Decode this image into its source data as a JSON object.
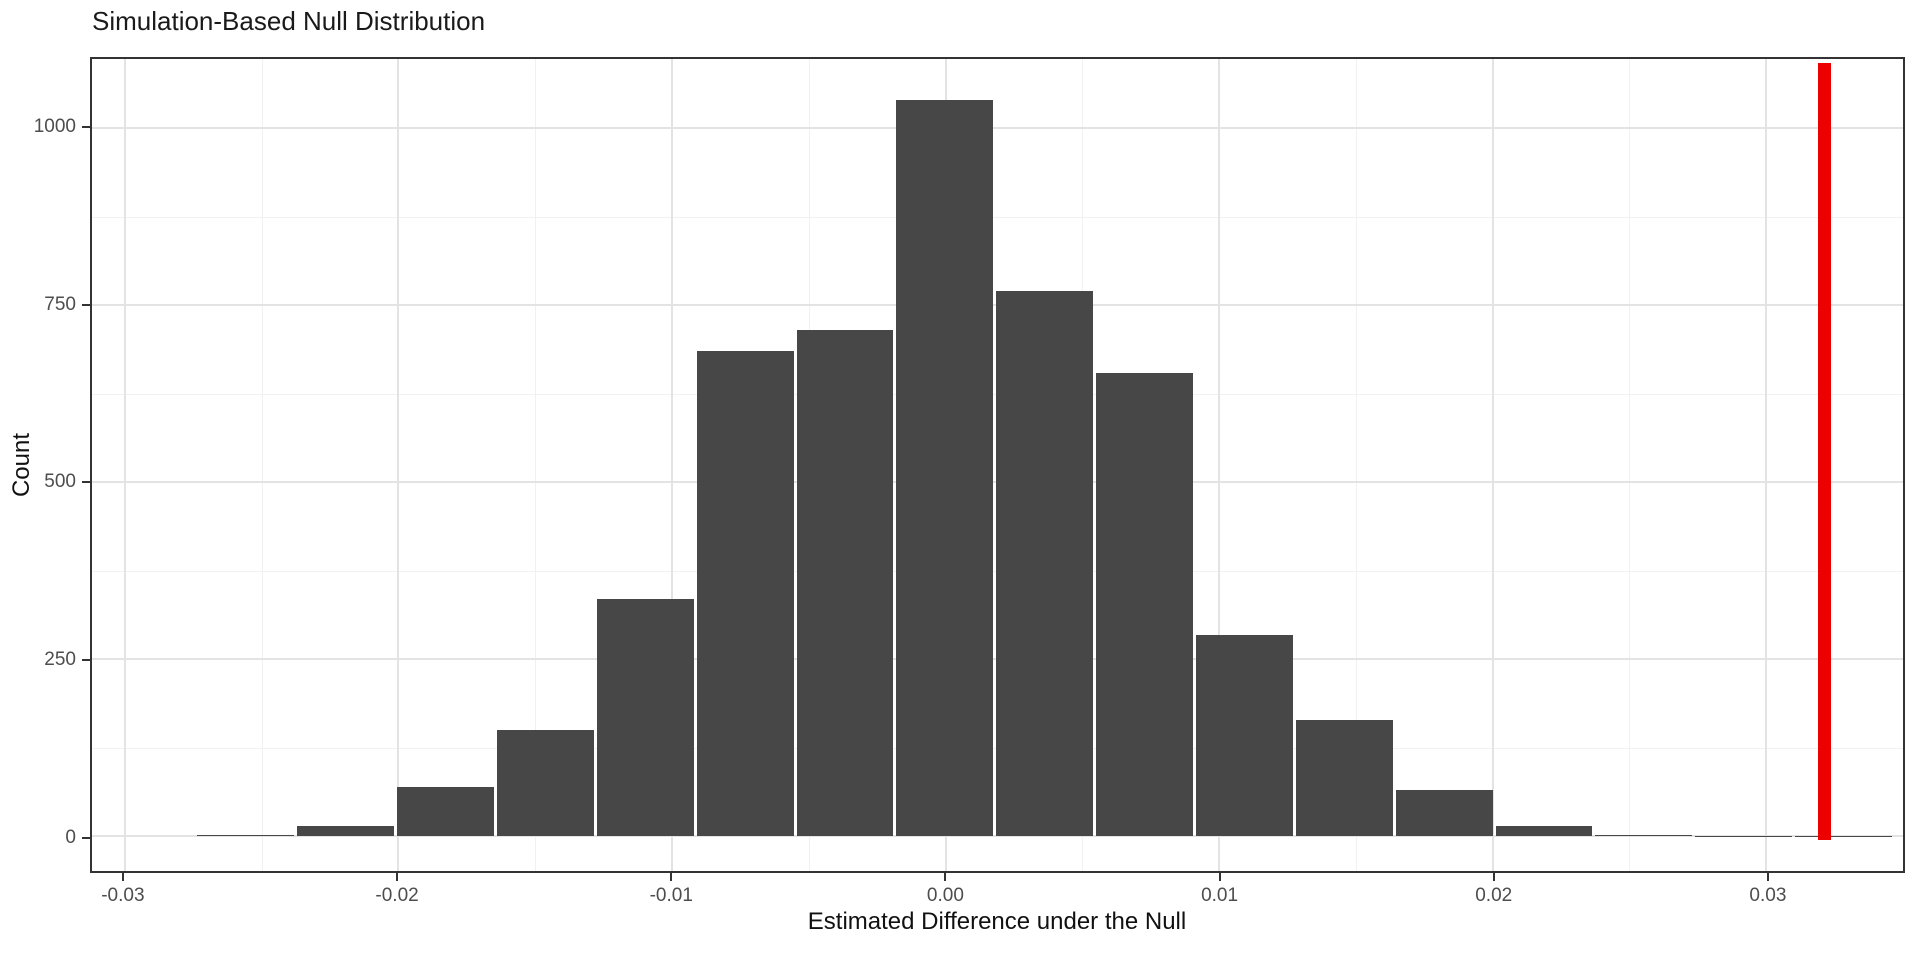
{
  "chart_data": {
    "type": "bar",
    "subtype": "histogram",
    "title": "Simulation-Based Null Distribution",
    "xlabel": "Estimated Difference under the Null",
    "ylabel": "Count",
    "bin_start": -0.0274,
    "bin_width": 0.00365,
    "counts": [
      2,
      15,
      70,
      150,
      335,
      685,
      715,
      1040,
      770,
      655,
      285,
      165,
      66,
      15,
      2,
      1,
      1
    ],
    "observed_stat": 0.032,
    "observed_line_color": "#ED0000",
    "bar_fill": "#474747",
    "xlim": [
      -0.0312,
      0.035
    ],
    "ylim": [
      -49,
      1098
    ],
    "x_ticks": [
      -0.03,
      -0.02,
      -0.01,
      0.0,
      0.01,
      0.02,
      0.03
    ],
    "x_tick_labels": [
      "-0.03",
      "-0.02",
      "-0.01",
      "0.00",
      "0.01",
      "0.02",
      "0.03"
    ],
    "x_minor": [
      -0.025,
      -0.015,
      -0.005,
      0.005,
      0.015,
      0.025
    ],
    "y_ticks": [
      0,
      250,
      500,
      750,
      1000
    ],
    "y_tick_labels": [
      "0",
      "250",
      "500",
      "750",
      "1000"
    ],
    "y_minor": [
      125,
      375,
      625,
      875
    ],
    "grid": "on",
    "legend": "none"
  }
}
